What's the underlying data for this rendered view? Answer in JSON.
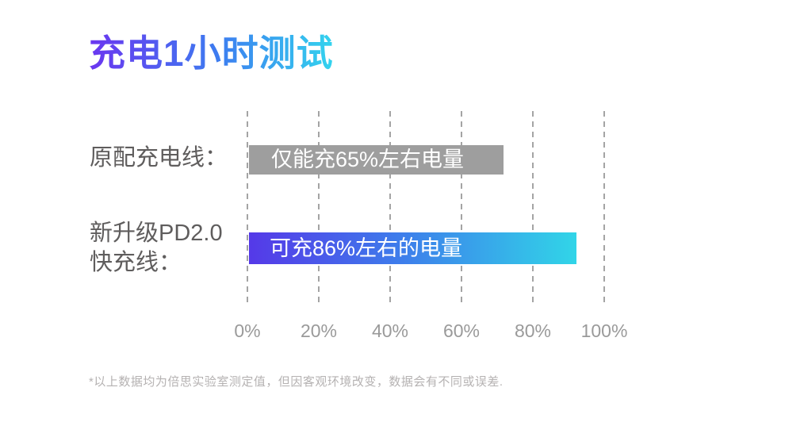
{
  "page": {
    "title": "充电1小时测试",
    "footnote": "*以上数据均为倍思实验室测定值，但因客观环境改变，数据会有不同或误差."
  },
  "colors": {
    "title_gradient": [
      "#6b36f0",
      "#3d7bf0",
      "#33d4ee"
    ],
    "bar_original_cable": "#9e9e9e",
    "bar_pd_cable_gradient": [
      "#5539e8",
      "#3e7beb",
      "#31d5e8"
    ],
    "bar_text": "#ffffff",
    "category_label_text": "#5f5d5d",
    "axis_tick_text": "#9a9a9a",
    "gridline": "#a4a4a4",
    "footnote_text": "#b5b2b2",
    "background": "#ffffff"
  },
  "chart_data": {
    "type": "bar",
    "orientation": "horizontal",
    "title": "充电1小时测试",
    "categories": [
      "原配充电线",
      "新升级PD2.0快充线"
    ],
    "category_lines": [
      [
        "原配充电线："
      ],
      [
        "新升级PD2.0",
        "快充线："
      ]
    ],
    "values": [
      65,
      86
    ],
    "bar_labels": [
      "仅能充65%左右电量",
      "可充86%左右的电量"
    ],
    "xlim": [
      0,
      100
    ],
    "x_ticks": [
      "0%",
      "20%",
      "40%",
      "60%",
      "80%",
      "100%"
    ],
    "x_tick_values": [
      0,
      20,
      40,
      60,
      80,
      100
    ],
    "grid": "vertical dashed",
    "legend": "none"
  }
}
